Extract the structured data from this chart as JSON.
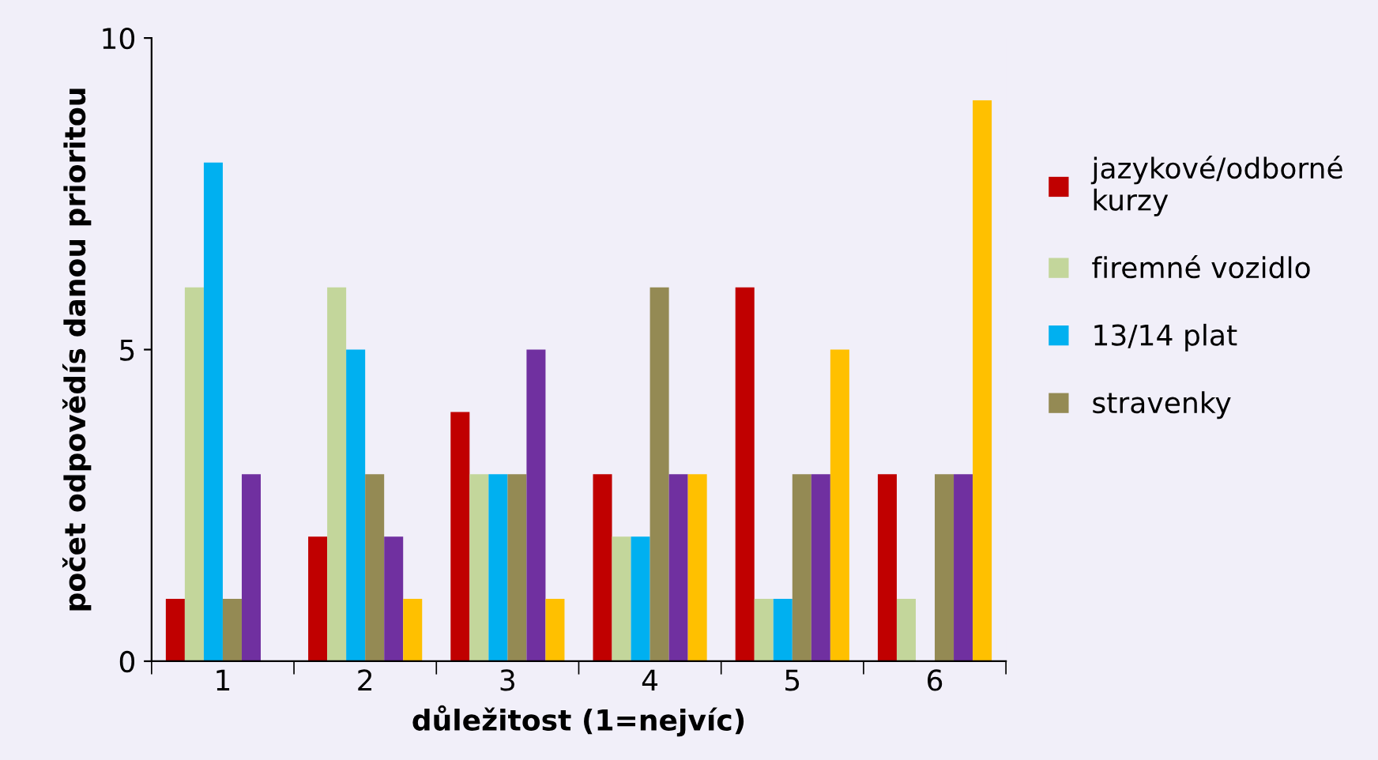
{
  "chart_data": {
    "type": "bar",
    "xlabel": "důležitost (1=nejvíc)",
    "ylabel": "počet odpovědís danou prioritou",
    "categories": [
      "1",
      "2",
      "3",
      "4",
      "5",
      "6"
    ],
    "series": [
      {
        "name": "jazykové/odborné\nkurzy",
        "color": "#c00000",
        "values": [
          1,
          2,
          4,
          3,
          6,
          3
        ]
      },
      {
        "name": "firemné vozidlo",
        "color": "#c3d69b",
        "values": [
          6,
          6,
          3,
          2,
          1,
          1
        ]
      },
      {
        "name": "13/14 plat",
        "color": "#00b0f0",
        "values": [
          8,
          5,
          3,
          2,
          1,
          0
        ]
      },
      {
        "name": "stravenky",
        "color": "#948a54",
        "values": [
          1,
          3,
          3,
          6,
          3,
          3
        ]
      },
      {
        "color": "#7030a0",
        "values": [
          3,
          2,
          5,
          3,
          3,
          3
        ]
      },
      {
        "color": "#ffc000",
        "values": [
          0,
          1,
          1,
          3,
          5,
          9
        ]
      }
    ],
    "ylim": [
      0,
      10
    ],
    "yticks": [
      0,
      5,
      10
    ],
    "grid": false,
    "legend": "right"
  }
}
